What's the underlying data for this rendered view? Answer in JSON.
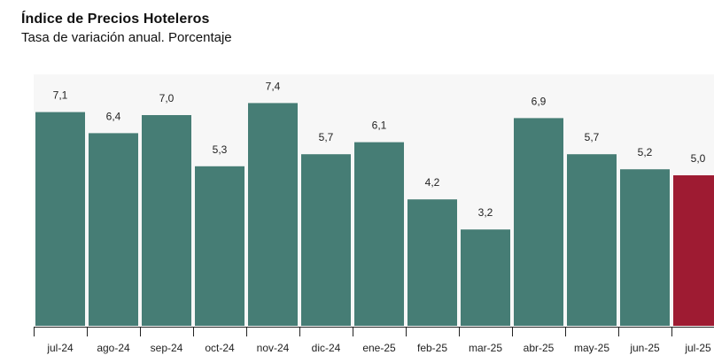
{
  "header": {
    "title": "Índice de Precios Hoteleros",
    "subtitle": "Tasa de variación anual. Porcentaje"
  },
  "colors": {
    "bar": "#467d75",
    "highlight": "#9e1b32",
    "plot_background": "#f7f7f7",
    "axis": "#222222"
  },
  "chart_data": {
    "type": "bar",
    "title": "Índice de Precios Hoteleros",
    "subtitle": "Tasa de variación anual. Porcentaje",
    "categories": [
      "jul-24",
      "ago-24",
      "sep-24",
      "oct-24",
      "nov-24",
      "dic-24",
      "ene-25",
      "feb-25",
      "mar-25",
      "abr-25",
      "may-25",
      "jun-25",
      "jul-25"
    ],
    "values": [
      7.1,
      6.4,
      7.0,
      5.3,
      7.4,
      5.7,
      6.1,
      4.2,
      3.2,
      6.9,
      5.7,
      5.2,
      5.0
    ],
    "value_labels": [
      "7,1",
      "6,4",
      "7,0",
      "5,3",
      "7,4",
      "5,7",
      "6,1",
      "4,2",
      "3,2",
      "6,9",
      "5,7",
      "5,2",
      "5,0"
    ],
    "highlight_category": "jul-25",
    "ylim": [
      0,
      8.1
    ],
    "grid": false,
    "legend": "none",
    "xlabel": "",
    "ylabel": ""
  }
}
